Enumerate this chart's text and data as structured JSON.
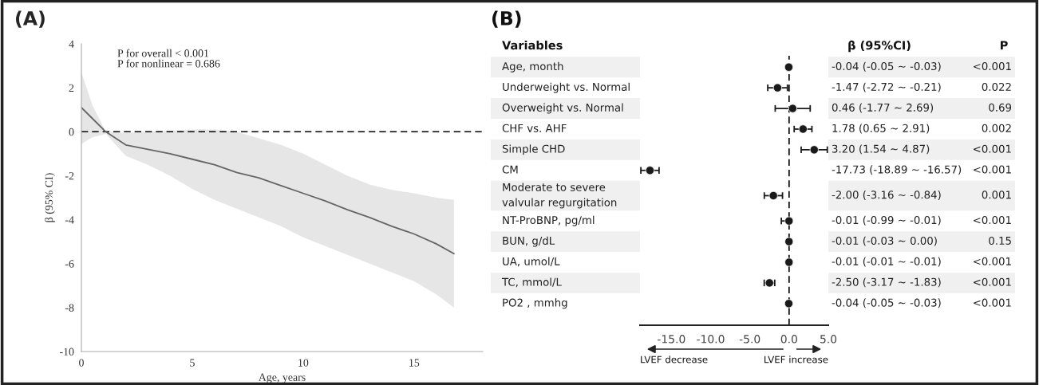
{
  "chart_data": [
    {
      "type": "line",
      "xlabel": "Age, years",
      "ylabel": "β (95% CI)",
      "xlim": [
        0,
        18.1
      ],
      "xticks": [
        0,
        5,
        10,
        15
      ],
      "ylim": [
        -10,
        4
      ],
      "yticks": [
        -10,
        -8,
        -6,
        -4,
        -2,
        0,
        2,
        4
      ],
      "grid": false,
      "series": [
        {
          "color": "#666666",
          "x": [
            0,
            0.5,
            1.1,
            2,
            3,
            4,
            5,
            6,
            7,
            8,
            9,
            10,
            11,
            12,
            13,
            14,
            15,
            16,
            16.8
          ],
          "values": [
            1.1,
            0.6,
            0.0,
            -0.6,
            -0.8,
            -1.0,
            -1.25,
            -1.5,
            -1.85,
            -2.1,
            -2.45,
            -2.8,
            -3.15,
            -3.55,
            -3.9,
            -4.3,
            -4.65,
            -5.1,
            -5.55
          ],
          "upper": [
            2.7,
            1.2,
            0.0,
            -0.05,
            0.0,
            0.05,
            0.1,
            0.1,
            0.0,
            -0.3,
            -0.6,
            -1.0,
            -1.5,
            -2.0,
            -2.4,
            -2.65,
            -2.8,
            -3.0,
            -3.1
          ],
          "lower": [
            -0.55,
            -0.25,
            -0.1,
            -1.1,
            -1.5,
            -2.0,
            -2.6,
            -3.1,
            -3.5,
            -3.9,
            -4.3,
            -4.8,
            -5.2,
            -5.6,
            -6.0,
            -6.4,
            -6.8,
            -7.4,
            -8.0
          ]
        }
      ],
      "ref_lines": [
        {
          "axis": "y",
          "value": 0,
          "color": "#000000",
          "line_style": "dashed"
        }
      ],
      "annotations": [
        "(A)",
        "P for overall < 0.001",
        "P for nonlinear = 0.686"
      ]
    },
    {
      "type": "scatter",
      "orientation": "horizontal",
      "marker": "circle",
      "categories": [
        "Age, month",
        "Underweight vs. Normal",
        "Overweight vs. Normal",
        "CHF vs. AHF",
        "Simple CHD",
        "CM",
        "Moderate to severe\nvalvular regurgitation",
        "NT-ProBNP, pg/ml",
        "BUN, g/dL",
        "UA, umol/L",
        "TC, mmol/L",
        "PO2 , mmhg"
      ],
      "xlim": [
        -19,
        5
      ],
      "xticks": [
        {
          "value": -15,
          "label": "-15.0"
        },
        {
          "value": -10,
          "label": "-10.0"
        },
        {
          "value": -5,
          "label": "-5.0"
        },
        {
          "value": 0,
          "label": "0.0"
        },
        {
          "value": 5,
          "label": "5.0"
        }
      ],
      "series": [
        {
          "color": "#1a1a1a",
          "values": [
            -0.04,
            -1.47,
            0.46,
            1.78,
            3.2,
            -17.73,
            -2.0,
            -0.01,
            -0.01,
            -0.01,
            -2.5,
            -0.04
          ],
          "errors": [
            [
              -0.05,
              -0.03
            ],
            [
              -2.72,
              -0.21
            ],
            [
              -1.77,
              2.69
            ],
            [
              0.65,
              2.91
            ],
            [
              1.54,
              4.87
            ],
            [
              -18.89,
              -16.57
            ],
            [
              -3.16,
              -0.84
            ],
            [
              -0.99,
              -0.01
            ],
            [
              -0.03,
              0.0
            ],
            [
              -0.01,
              -0.01
            ],
            [
              -3.17,
              -1.83
            ],
            [
              -0.05,
              -0.03
            ]
          ]
        }
      ],
      "ref_lines": [
        {
          "axis": "x",
          "value": 0,
          "color": "#000000",
          "line_style": "dashed"
        }
      ],
      "annotations": [
        "(B)",
        "Variables",
        "β (95%CI)",
        "P",
        "LVEF decrease",
        "LVEF increase",
        "-0.04 (-0.05 ~ -0.03)",
        "-1.47 (-2.72 ~ -0.21)",
        "0.46 (-1.77 ~ 2.69)",
        "1.78 (0.65 ~ 2.91)",
        "3.20 (1.54 ~ 4.87)",
        "-17.73 (-18.89 ~ -16.57)",
        "-2.00 (-3.16 ~ -0.84)",
        "-0.01 (-0.99 ~ -0.01)",
        "-0.01 (-0.03 ~ 0.00)",
        "-0.01 (-0.01 ~ -0.01)",
        "-2.50 (-3.17 ~ -1.83)",
        "-0.04 (-0.05 ~ -0.03)",
        "<0.001",
        "0.022",
        "0.69",
        "0.002",
        "<0.001",
        "<0.001",
        "0.001",
        "<0.001",
        "0.15",
        "<0.001",
        "<0.001",
        "<0.001"
      ]
    }
  ]
}
